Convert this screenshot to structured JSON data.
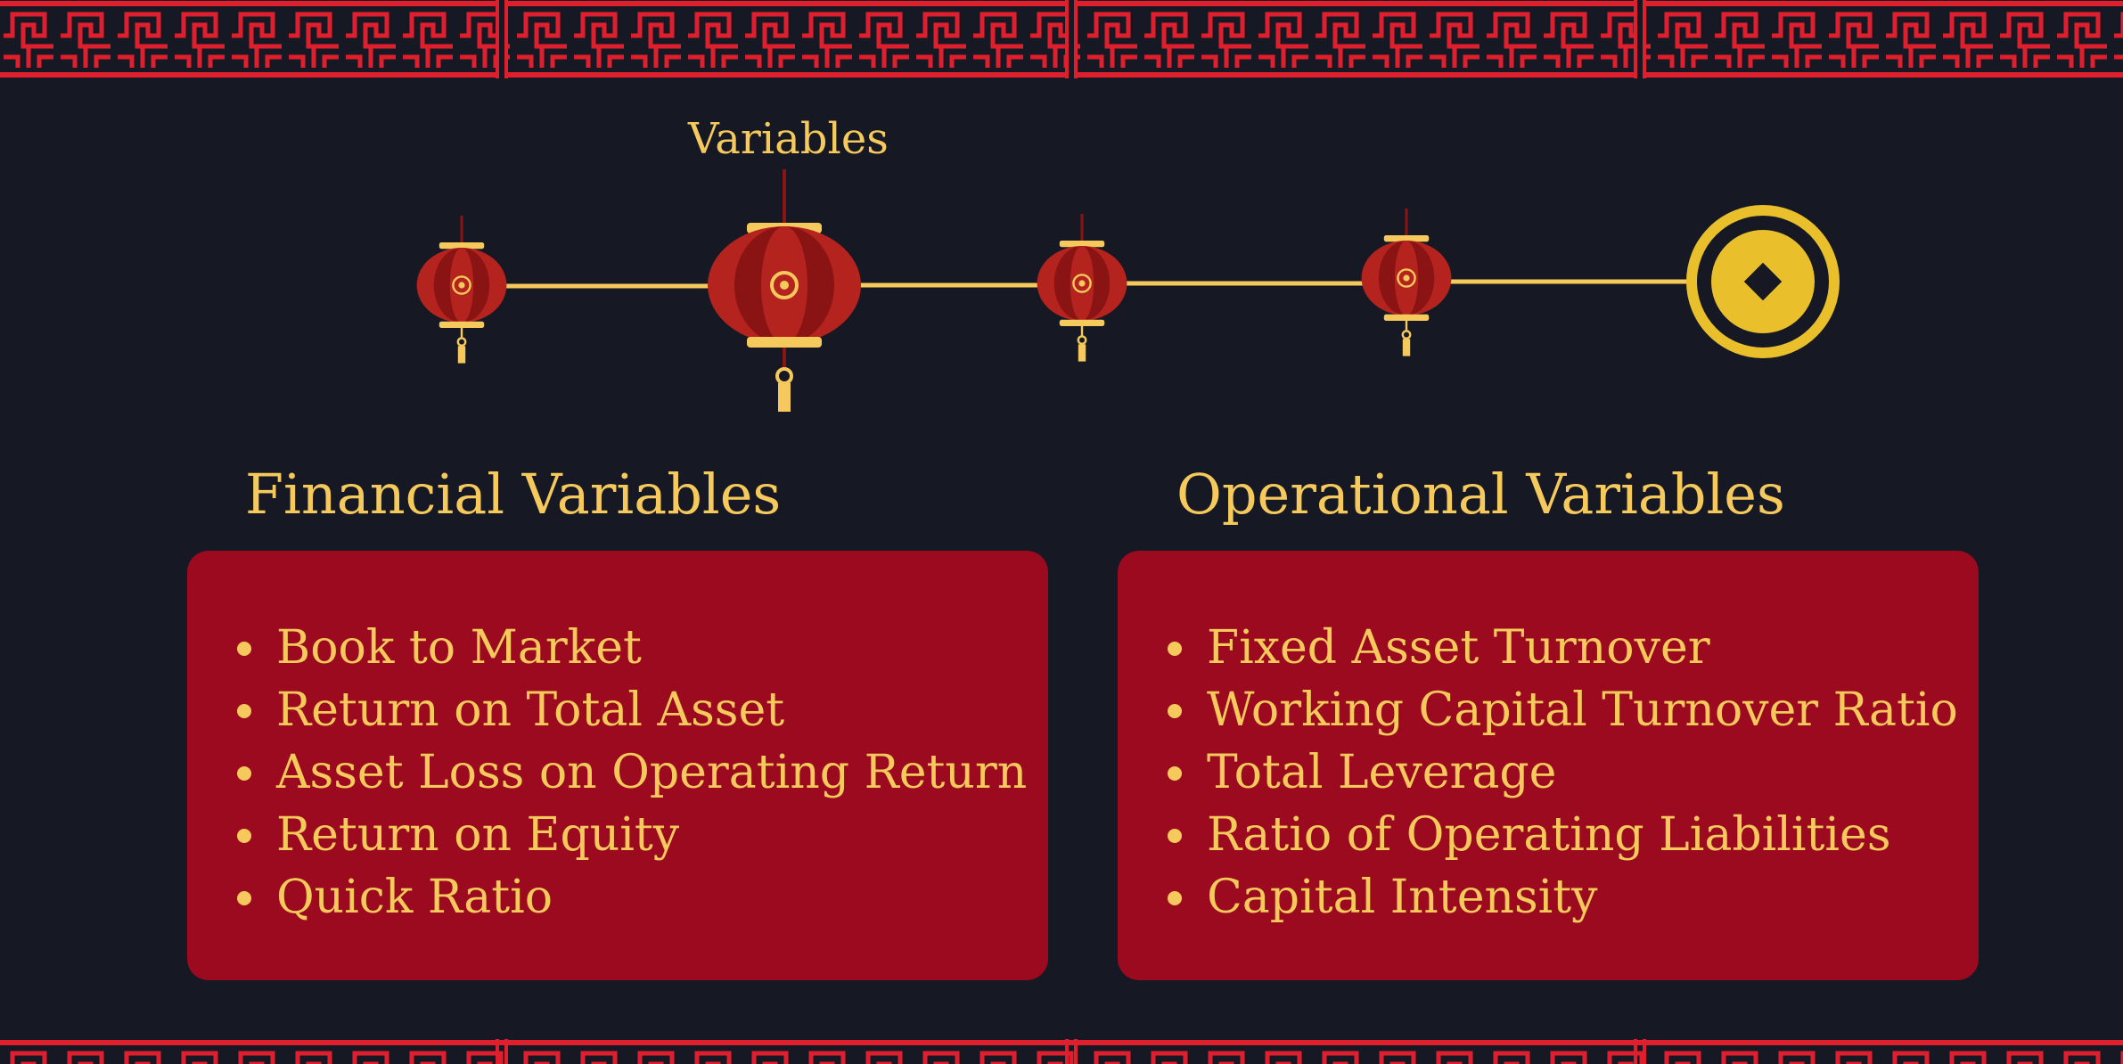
{
  "colors": {
    "background": "#161923",
    "border_red": "#e01f2e",
    "lantern_red": "#b4231e",
    "lantern_dark": "#8a1414",
    "gold": "#f5c95b",
    "coin_gold": "#e9c02c",
    "card_red": "#9b0a1e"
  },
  "timeline": {
    "label": "Variables",
    "icons": [
      "lantern-icon",
      "lantern-icon",
      "lantern-icon",
      "lantern-icon",
      "coin-icon"
    ]
  },
  "sections": [
    {
      "heading": "Financial Variables",
      "items": [
        {
          "text": "Book to Market"
        },
        {
          "text": "Return on Total Asset"
        },
        {
          "text": "Asset Loss on Operating Return"
        },
        {
          "text": "Return on Equity"
        },
        {
          "text": "Quick Ratio"
        }
      ]
    },
    {
      "heading": "Operational Variables",
      "items": [
        {
          "text": "Fixed Asset Turnover"
        },
        {
          "text": "Working Capital Turnover Ratio"
        },
        {
          "text": "Total Leverage"
        },
        {
          "text": "Ratio of Operating Liabilities"
        },
        {
          "text": "Capital Intensity"
        }
      ]
    }
  ]
}
